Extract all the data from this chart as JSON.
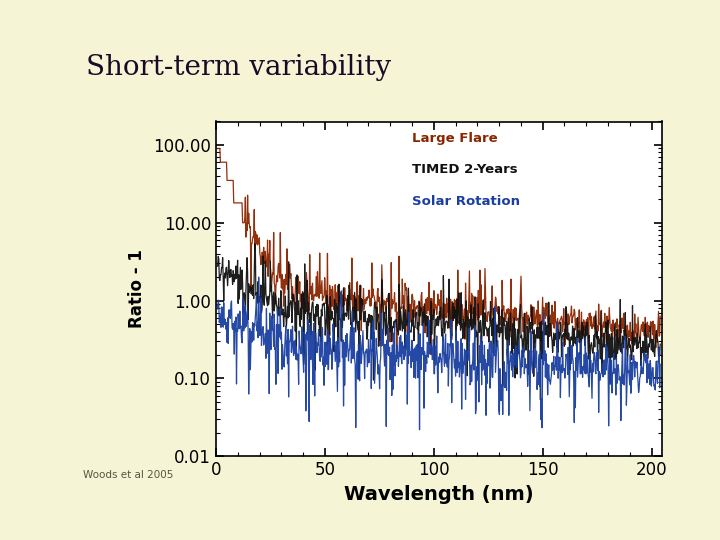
{
  "title": "Short-term variability",
  "citation": "Woods et al 2005",
  "xlabel": "Wavelength (nm)",
  "ylabel": "Ratio - 1",
  "xlim": [
    0,
    205
  ],
  "ylim_log": [
    0.01,
    200
  ],
  "xticks": [
    0,
    50,
    100,
    150,
    200
  ],
  "ytick_labels": [
    "0.01",
    "0.10",
    "1.00",
    "10.00",
    "100.00"
  ],
  "ytick_vals": [
    0.01,
    0.1,
    1.0,
    10.0,
    100.0
  ],
  "bg_color": "#f5f5d5",
  "left_strip_color": "#c8c89a",
  "plot_bg": "#ffffff",
  "title_color": "#1a0a28",
  "line_colors": {
    "large_flare": "#8b2500",
    "timed_2years": "#111111",
    "solar_rotation": "#1a3fa0"
  },
  "legend_labels": [
    "Large Flare",
    "TIMED 2-Years",
    "Solar Rotation"
  ],
  "legend_colors": [
    "#8b2500",
    "#111111",
    "#1a3fa0"
  ],
  "divider_color": "#2a0505",
  "accent_bar_color": "#aaaabc"
}
